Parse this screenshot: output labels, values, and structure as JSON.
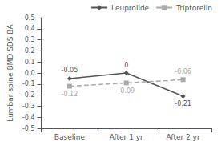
{
  "chart_data": {
    "type": "line",
    "categories": [
      "Baseline",
      "After 1 yr",
      "After 2 yr"
    ],
    "series": [
      {
        "name": "Leuprolide",
        "color": "#555555",
        "marker": "diamond",
        "line_style": "solid",
        "values": [
          -0.05,
          0.0,
          -0.21
        ]
      },
      {
        "name": "Triptorelin",
        "color": "#aaaaaa",
        "marker": "square",
        "line_style": "dashed",
        "values": [
          -0.12,
          -0.09,
          -0.06
        ]
      }
    ],
    "ylabel": "Lumbar spine BMD SDS BA",
    "ylim": [
      -0.5,
      0.5
    ],
    "yticks": [
      -0.5,
      -0.4,
      -0.3,
      -0.2,
      -0.1,
      {
        "value": 0.0,
        "label": "0.0"
      },
      0.1,
      0.2,
      0.3,
      0.4,
      0.5
    ],
    "grid": false,
    "legend": "upper right",
    "data_labels": true
  }
}
